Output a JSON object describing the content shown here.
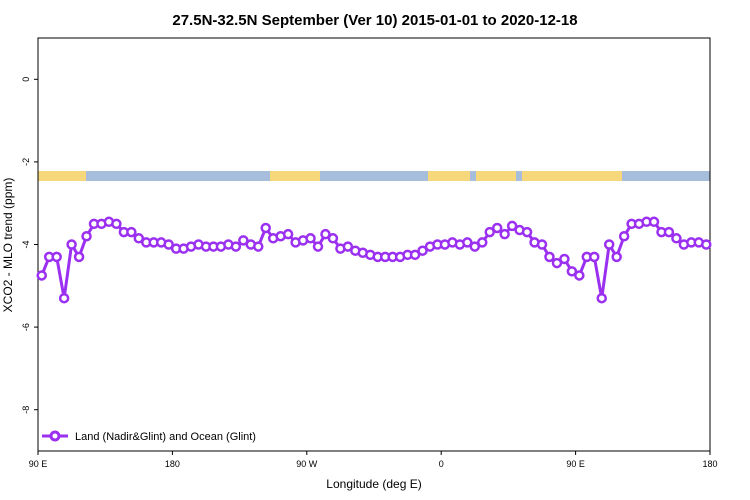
{
  "chart_data": {
    "type": "line",
    "title": "27.5N-32.5N September (Ver 10)   2015-01-01 to 2020-12-18",
    "x_label": "Longitude (deg E)",
    "y_label": "XCO2 - MLO trend (ppm)",
    "x": [
      92.5,
      97.5,
      102.5,
      107.5,
      112.5,
      117.5,
      122.5,
      127.5,
      132.5,
      137.5,
      142.5,
      147.5,
      152.5,
      157.5,
      162.5,
      167.5,
      172.5,
      177.5,
      182.5,
      187.5,
      192.5,
      197.5,
      202.5,
      207.5,
      212.5,
      217.5,
      222.5,
      227.5,
      232.5,
      237.5,
      242.5,
      247.5,
      252.5,
      257.5,
      262.5,
      267.5,
      272.5,
      277.5,
      282.5,
      287.5,
      292.5,
      297.5,
      302.5,
      307.5,
      312.5,
      317.5,
      322.5,
      327.5,
      332.5,
      337.5,
      342.5,
      347.5,
      352.5,
      357.5,
      362.5,
      367.5,
      372.5,
      377.5,
      382.5,
      387.5,
      392.5,
      397.5,
      402.5,
      407.5,
      412.5,
      417.5,
      422.5,
      427.5,
      432.5,
      437.5,
      442.5,
      447.5,
      452.5,
      457.5,
      462.5,
      467.5,
      472.5,
      477.5,
      482.5,
      487.5,
      492.5,
      497.5,
      502.5,
      507.5,
      512.5,
      517.5,
      522.5,
      527.5,
      532.5,
      537.5
    ],
    "series": [
      {
        "name": "Land (Nadir&Glint) and Ocean (Glint)",
        "color": "#9b30f0",
        "values": [
          -4.75,
          -4.3,
          -4.3,
          -5.3,
          -4.0,
          -4.3,
          -3.8,
          -3.5,
          -3.5,
          -3.45,
          -3.5,
          -3.7,
          -3.7,
          -3.85,
          -3.95,
          -3.95,
          -3.95,
          -4.0,
          -4.1,
          -4.1,
          -4.05,
          -4.0,
          -4.05,
          -4.05,
          -4.05,
          -4.0,
          -4.05,
          -3.9,
          -4.0,
          -4.05,
          -3.6,
          -3.85,
          -3.8,
          -3.75,
          -3.95,
          -3.9,
          -3.85,
          -4.05,
          -3.75,
          -3.85,
          -4.1,
          -4.05,
          -4.15,
          -4.2,
          -4.25,
          -4.3,
          -4.3,
          -4.3,
          -4.3,
          -4.25,
          -4.25,
          -4.15,
          -4.05,
          -4.0,
          -4.0,
          -3.95,
          -4.0,
          -3.95,
          -4.05,
          -3.95,
          -3.7,
          -3.6,
          -3.75,
          -3.55,
          -3.65,
          -3.7,
          -3.95,
          -4.0,
          -4.3,
          -4.45,
          -4.35,
          -4.65,
          -4.75,
          -4.3,
          -4.3,
          -5.3,
          -4.0,
          -4.3,
          -3.8,
          -3.5,
          -3.5,
          -3.45,
          -3.45,
          -3.7,
          -3.7,
          -3.85,
          -4.0,
          -3.95,
          -3.95,
          -4.0
        ]
      }
    ],
    "xlim": [
      90,
      540
    ],
    "xticks": [
      {
        "value": 90,
        "label": "90 E"
      },
      180,
      {
        "value": 270,
        "label": "90 W"
      },
      {
        "value": 360,
        "label": "0"
      },
      {
        "value": 450,
        "label": "90 E"
      },
      {
        "value": 540,
        "label": "180"
      }
    ],
    "ylim": [
      -9,
      1
    ],
    "yticks": [
      0,
      -2,
      -4,
      -6,
      -8
    ],
    "legend": "bottom-left"
  }
}
